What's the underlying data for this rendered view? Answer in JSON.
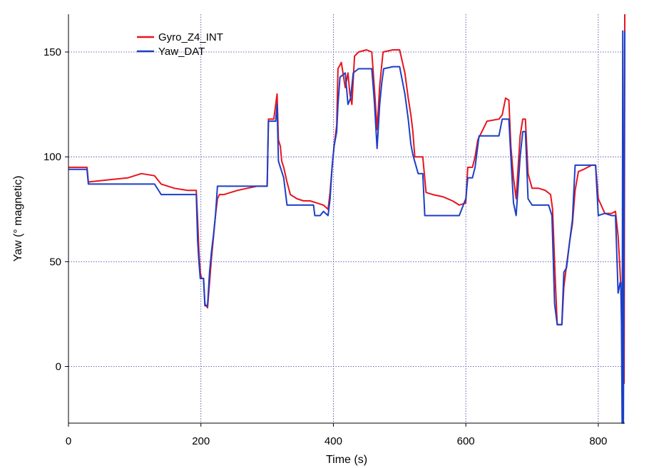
{
  "chart_data": {
    "type": "line",
    "title": "",
    "xlabel": "Time (s)",
    "ylabel": "Yaw (° magnetic)",
    "xlim": [
      0,
      840
    ],
    "ylim": [
      -27,
      168
    ],
    "xticks": [
      0,
      200,
      400,
      600,
      800
    ],
    "yticks": [
      0,
      50,
      100,
      150
    ],
    "grid": "dotted",
    "legend_position": "top-left",
    "series": [
      {
        "name": "Gyro_Z4_INT",
        "color": "#e8141c",
        "points": [
          [
            0,
            95
          ],
          [
            28,
            95
          ],
          [
            30,
            88
          ],
          [
            60,
            89
          ],
          [
            90,
            90
          ],
          [
            110,
            92
          ],
          [
            130,
            91
          ],
          [
            140,
            87
          ],
          [
            160,
            85
          ],
          [
            180,
            84
          ],
          [
            193,
            84
          ],
          [
            195,
            70
          ],
          [
            197,
            55
          ],
          [
            199,
            45
          ],
          [
            201,
            42
          ],
          [
            204,
            42
          ],
          [
            206,
            30
          ],
          [
            210,
            28
          ],
          [
            213,
            40
          ],
          [
            216,
            52
          ],
          [
            219,
            62
          ],
          [
            222,
            72
          ],
          [
            225,
            80
          ],
          [
            228,
            82
          ],
          [
            235,
            82
          ],
          [
            245,
            83
          ],
          [
            255,
            84
          ],
          [
            270,
            85
          ],
          [
            285,
            86
          ],
          [
            300,
            86
          ],
          [
            302,
            118
          ],
          [
            310,
            118
          ],
          [
            315,
            130
          ],
          [
            317,
            108
          ],
          [
            320,
            105
          ],
          [
            322,
            98
          ],
          [
            325,
            95
          ],
          [
            330,
            88
          ],
          [
            335,
            82
          ],
          [
            345,
            80
          ],
          [
            355,
            79
          ],
          [
            365,
            79
          ],
          [
            375,
            78
          ],
          [
            385,
            77
          ],
          [
            392,
            75
          ],
          [
            395,
            83
          ],
          [
            398,
            95
          ],
          [
            401,
            105
          ],
          [
            405,
            115
          ],
          [
            407,
            142
          ],
          [
            412,
            145
          ],
          [
            418,
            133
          ],
          [
            422,
            140
          ],
          [
            425,
            130
          ],
          [
            428,
            125
          ],
          [
            432,
            148
          ],
          [
            438,
            150
          ],
          [
            450,
            151
          ],
          [
            458,
            150
          ],
          [
            463,
            128
          ],
          [
            466,
            113
          ],
          [
            470,
            134
          ],
          [
            475,
            150
          ],
          [
            490,
            151
          ],
          [
            500,
            151
          ],
          [
            508,
            140
          ],
          [
            513,
            128
          ],
          [
            517,
            120
          ],
          [
            520,
            112
          ],
          [
            523,
            100
          ],
          [
            528,
            100
          ],
          [
            535,
            100
          ],
          [
            540,
            83
          ],
          [
            550,
            82
          ],
          [
            565,
            81
          ],
          [
            580,
            79
          ],
          [
            590,
            77
          ],
          [
            600,
            78
          ],
          [
            603,
            95
          ],
          [
            610,
            95
          ],
          [
            614,
            100
          ],
          [
            618,
            108
          ],
          [
            632,
            117
          ],
          [
            650,
            118
          ],
          [
            655,
            120
          ],
          [
            660,
            128
          ],
          [
            665,
            127
          ],
          [
            668,
            105
          ],
          [
            672,
            90
          ],
          [
            676,
            80
          ],
          [
            682,
            110
          ],
          [
            686,
            118
          ],
          [
            690,
            118
          ],
          [
            694,
            92
          ],
          [
            700,
            85
          ],
          [
            710,
            85
          ],
          [
            720,
            84
          ],
          [
            728,
            82
          ],
          [
            731,
            75
          ],
          [
            735,
            42
          ],
          [
            738,
            20
          ],
          [
            745,
            20
          ],
          [
            748,
            38
          ],
          [
            752,
            48
          ],
          [
            757,
            60
          ],
          [
            761,
            68
          ],
          [
            765,
            84
          ],
          [
            770,
            93
          ],
          [
            778,
            94
          ],
          [
            790,
            96
          ],
          [
            796,
            96
          ],
          [
            800,
            80
          ],
          [
            810,
            73
          ],
          [
            820,
            73
          ],
          [
            826,
            74
          ],
          [
            830,
            62
          ],
          [
            833,
            45
          ],
          [
            835,
            30
          ],
          [
            836,
            18
          ],
          [
            837,
            5
          ],
          [
            838,
            -3
          ],
          [
            839,
            -8
          ],
          [
            840,
            168
          ]
        ]
      },
      {
        "name": "Yaw_DAT",
        "color": "#1c3fc8",
        "points": [
          [
            0,
            94
          ],
          [
            28,
            94
          ],
          [
            30,
            87
          ],
          [
            60,
            87
          ],
          [
            90,
            87
          ],
          [
            110,
            87
          ],
          [
            130,
            87
          ],
          [
            140,
            82
          ],
          [
            160,
            82
          ],
          [
            180,
            82
          ],
          [
            193,
            82
          ],
          [
            195,
            60
          ],
          [
            197,
            50
          ],
          [
            199,
            42
          ],
          [
            204,
            42
          ],
          [
            206,
            29
          ],
          [
            210,
            29
          ],
          [
            213,
            45
          ],
          [
            216,
            55
          ],
          [
            219,
            63
          ],
          [
            222,
            72
          ],
          [
            225,
            86
          ],
          [
            235,
            86
          ],
          [
            245,
            86
          ],
          [
            255,
            86
          ],
          [
            270,
            86
          ],
          [
            285,
            86
          ],
          [
            300,
            86
          ],
          [
            302,
            117
          ],
          [
            313,
            117
          ],
          [
            315,
            125
          ],
          [
            317,
            98
          ],
          [
            320,
            95
          ],
          [
            325,
            90
          ],
          [
            330,
            77
          ],
          [
            340,
            77
          ],
          [
            360,
            77
          ],
          [
            370,
            77
          ],
          [
            372,
            72
          ],
          [
            380,
            72
          ],
          [
            385,
            74
          ],
          [
            392,
            72
          ],
          [
            395,
            80
          ],
          [
            398,
            95
          ],
          [
            401,
            105
          ],
          [
            405,
            112
          ],
          [
            407,
            125
          ],
          [
            410,
            138
          ],
          [
            418,
            140
          ],
          [
            422,
            125
          ],
          [
            426,
            128
          ],
          [
            430,
            140
          ],
          [
            438,
            142
          ],
          [
            450,
            142
          ],
          [
            458,
            142
          ],
          [
            462,
            126
          ],
          [
            466,
            104
          ],
          [
            470,
            125
          ],
          [
            473,
            135
          ],
          [
            476,
            142
          ],
          [
            490,
            143
          ],
          [
            500,
            143
          ],
          [
            508,
            130
          ],
          [
            513,
            118
          ],
          [
            517,
            106
          ],
          [
            520,
            101
          ],
          [
            528,
            92
          ],
          [
            535,
            92
          ],
          [
            538,
            72
          ],
          [
            550,
            72
          ],
          [
            565,
            72
          ],
          [
            580,
            72
          ],
          [
            590,
            72
          ],
          [
            600,
            80
          ],
          [
            603,
            90
          ],
          [
            610,
            90
          ],
          [
            614,
            95
          ],
          [
            620,
            110
          ],
          [
            632,
            110
          ],
          [
            650,
            110
          ],
          [
            655,
            118
          ],
          [
            665,
            118
          ],
          [
            668,
            100
          ],
          [
            672,
            78
          ],
          [
            676,
            72
          ],
          [
            682,
            100
          ],
          [
            686,
            112
          ],
          [
            690,
            112
          ],
          [
            694,
            80
          ],
          [
            700,
            77
          ],
          [
            710,
            77
          ],
          [
            725,
            77
          ],
          [
            730,
            72
          ],
          [
            734,
            30
          ],
          [
            738,
            20
          ],
          [
            745,
            20
          ],
          [
            748,
            45
          ],
          [
            752,
            47
          ],
          [
            757,
            60
          ],
          [
            761,
            70
          ],
          [
            765,
            96
          ],
          [
            778,
            96
          ],
          [
            790,
            96
          ],
          [
            796,
            96
          ],
          [
            800,
            72
          ],
          [
            810,
            73
          ],
          [
            820,
            72
          ],
          [
            826,
            72
          ],
          [
            830,
            35
          ],
          [
            833,
            40
          ],
          [
            834,
            40
          ],
          [
            835,
            20
          ],
          [
            836,
            -27
          ],
          [
            837,
            160
          ],
          [
            838,
            -27
          ],
          [
            840,
            160
          ]
        ]
      }
    ]
  }
}
